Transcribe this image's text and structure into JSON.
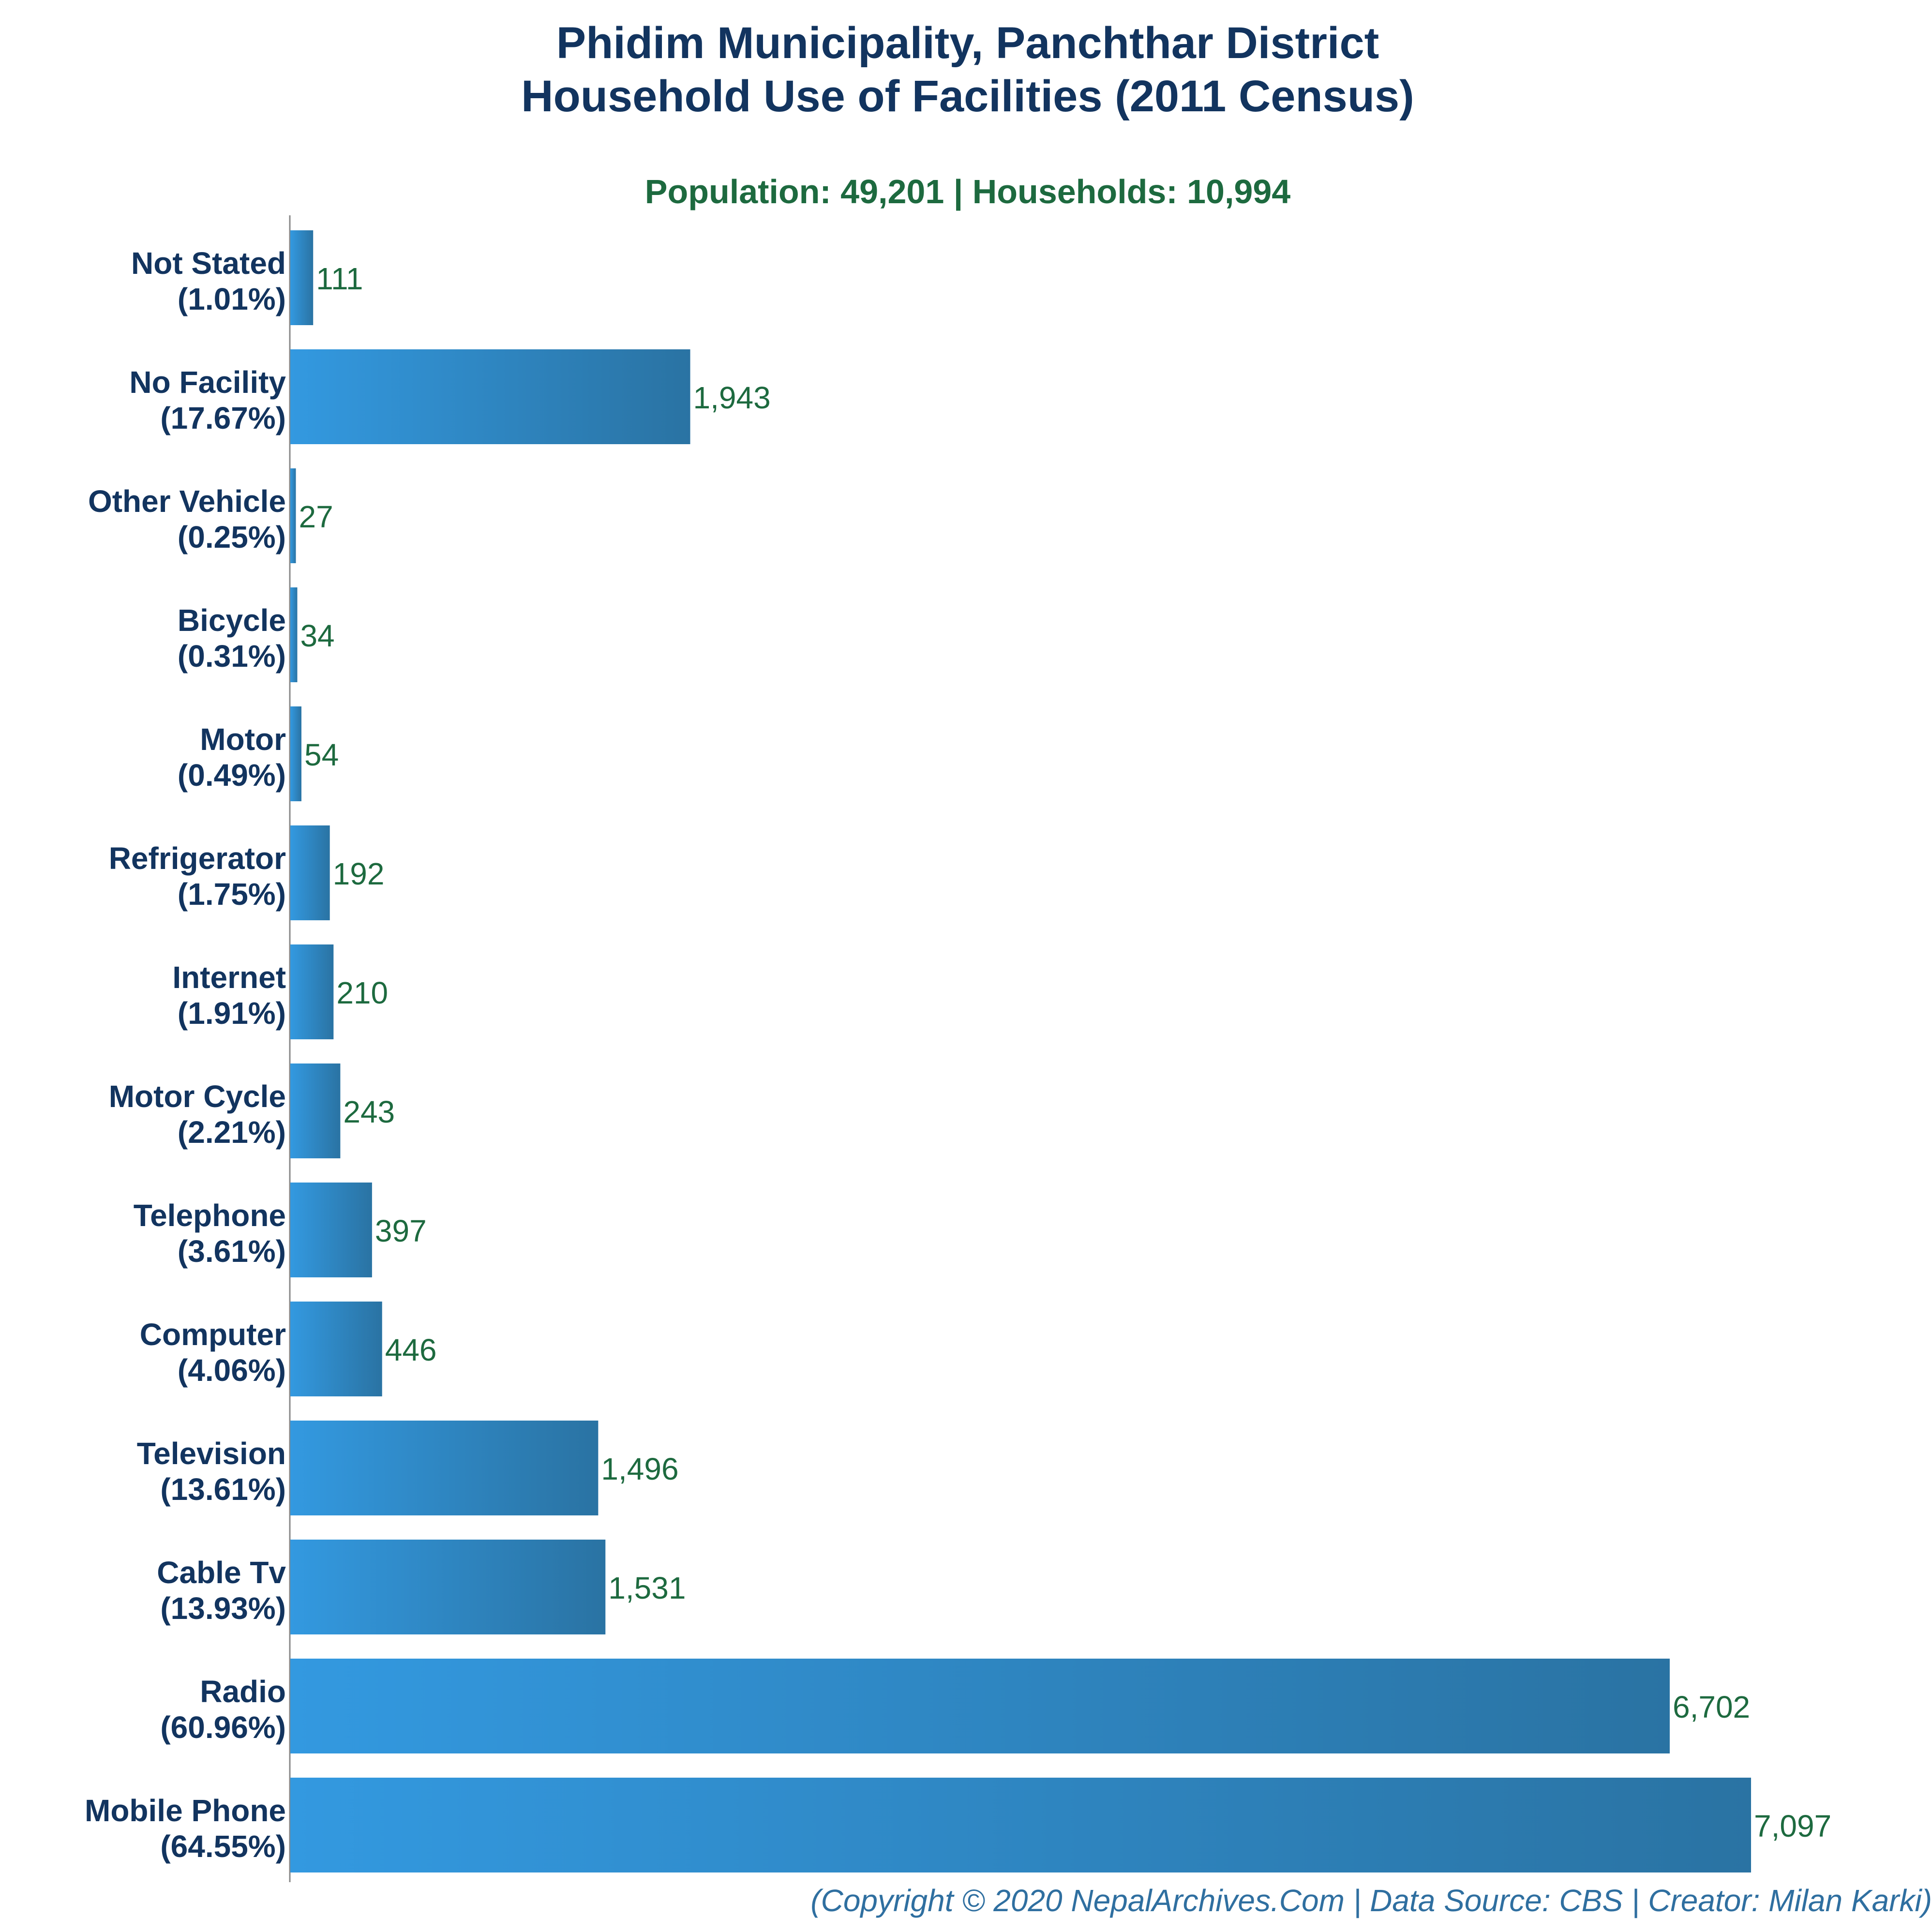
{
  "chart_data": {
    "type": "bar",
    "orientation": "horizontal",
    "title_lines": [
      "Phidim Municipality, Panchthar District",
      "Household Use of Facilities (2011 Census)"
    ],
    "subtitle": "Population: 49,201 | Households: 10,994",
    "categories": [
      "Not Stated",
      "No Facility",
      "Other Vehicle",
      "Bicycle",
      "Motor",
      "Refrigerator",
      "Internet",
      "Motor Cycle",
      "Telephone",
      "Computer",
      "Television",
      "Cable Tv",
      "Radio",
      "Mobile Phone"
    ],
    "percent_labels": [
      "(1.01%)",
      "(17.67%)",
      "(0.25%)",
      "(0.31%)",
      "(0.49%)",
      "(1.75%)",
      "(1.91%)",
      "(2.21%)",
      "(3.61%)",
      "(4.06%)",
      "(13.61%)",
      "(13.93%)",
      "(60.96%)",
      "(64.55%)"
    ],
    "values": [
      111,
      1943,
      27,
      34,
      54,
      192,
      210,
      243,
      397,
      446,
      1496,
      1531,
      6702,
      7097
    ],
    "value_labels": [
      "111",
      "1,943",
      "27",
      "34",
      "54",
      "192",
      "210",
      "243",
      "397",
      "446",
      "1,496",
      "1,531",
      "6,702",
      "7,097"
    ],
    "xlim": [
      0,
      7097
    ],
    "grid": false,
    "legend": "none",
    "colors": {
      "bar_light": "#3399e0",
      "bar_dark": "#2a73a3",
      "title": "#12345f",
      "subtitle": "#1d6a3f",
      "footer": "#2f6fa0",
      "axis": "#888888"
    }
  },
  "footer": "(Copyright © 2020 NepalArchives.Com | Data Source: CBS | Creator: Milan Karki)"
}
